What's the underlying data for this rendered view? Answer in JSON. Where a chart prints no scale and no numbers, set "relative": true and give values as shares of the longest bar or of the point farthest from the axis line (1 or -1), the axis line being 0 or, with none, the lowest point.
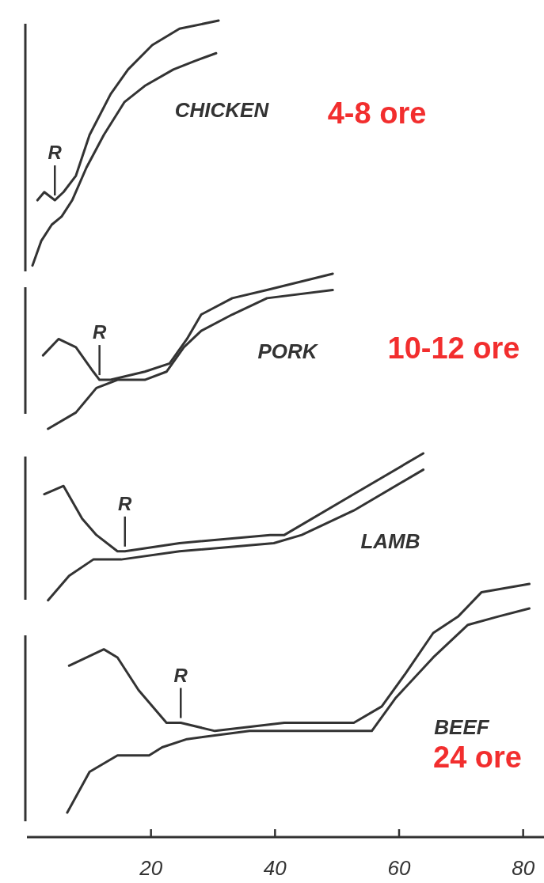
{
  "chart_data": {
    "type": "line",
    "relative": true,
    "xlim": [
      0,
      84
    ],
    "xticks": [
      20,
      40,
      60,
      80
    ],
    "tick_labels": "x",
    "annotations": [
      "CHICKEN",
      "4-8 ore",
      "PORK",
      "10-12 ore",
      "LAMB",
      "BEEF",
      "24 ore",
      {
        "text": "R",
        "x": 4.5,
        "y": 0.78
      },
      {
        "text": "R",
        "x": 11.7,
        "y": 0.56
      },
      {
        "text": "R",
        "x": 15.8,
        "y": 0.35
      },
      {
        "text": "R",
        "x": 24.8,
        "y": 0.14
      }
    ],
    "series": [
      {
        "color": "#333333",
        "x": [
          1.7,
          2.8,
          4.5,
          5.9,
          7.9,
          10.1,
          13.5,
          16.3,
          20.2,
          24.6,
          30.9
        ],
        "values": [
          0.78,
          0.79,
          0.78,
          0.79,
          0.81,
          0.86,
          0.91,
          0.94,
          0.97,
          0.99,
          1.0
        ]
      },
      {
        "color": "#333333",
        "x": [
          0.9,
          2.3,
          4.0,
          5.6,
          7.3,
          9.6,
          12.4,
          15.7,
          19.0,
          23.6,
          26.9,
          30.5
        ],
        "values": [
          0.7,
          0.73,
          0.75,
          0.76,
          0.78,
          0.82,
          0.86,
          0.9,
          0.92,
          0.94,
          0.95,
          0.96
        ]
      },
      {
        "color": "#333333",
        "x": [
          2.6,
          5.1,
          7.9,
          10.7,
          11.7,
          13.5,
          19.0,
          23.0,
          25.8,
          28.1,
          33.1,
          38.7,
          49.3
        ],
        "values": [
          0.59,
          0.61,
          0.6,
          0.57,
          0.56,
          0.56,
          0.57,
          0.58,
          0.61,
          0.64,
          0.66,
          0.67,
          0.69
        ]
      },
      {
        "color": "#333333",
        "x": [
          3.4,
          7.9,
          11.2,
          14.6,
          19.0,
          22.5,
          25.3,
          28.1,
          33.1,
          38.7,
          49.3
        ],
        "values": [
          0.5,
          0.52,
          0.55,
          0.56,
          0.56,
          0.57,
          0.6,
          0.62,
          0.64,
          0.66,
          0.67
        ]
      },
      {
        "color": "#333333",
        "x": [
          2.8,
          5.9,
          8.9,
          11.2,
          14.6,
          15.8,
          24.6,
          39.2,
          41.5,
          52.7,
          63.9
        ],
        "values": [
          0.42,
          0.43,
          0.39,
          0.37,
          0.35,
          0.35,
          0.36,
          0.37,
          0.37,
          0.42,
          0.47
        ]
      },
      {
        "color": "#333333",
        "x": [
          3.4,
          6.8,
          10.7,
          15.2,
          24.6,
          39.8,
          44.3,
          52.7,
          63.9
        ],
        "values": [
          0.29,
          0.32,
          0.34,
          0.34,
          0.35,
          0.36,
          0.37,
          0.4,
          0.45
        ]
      },
      {
        "color": "#333333",
        "x": [
          6.8,
          12.4,
          14.6,
          18.0,
          22.5,
          24.8,
          30.3,
          41.5,
          52.7,
          57.2,
          61.0,
          65.5,
          69.5,
          73.3,
          81.0
        ],
        "values": [
          0.21,
          0.23,
          0.22,
          0.18,
          0.14,
          0.14,
          0.13,
          0.14,
          0.14,
          0.16,
          0.2,
          0.25,
          0.27,
          0.3,
          0.31
        ]
      },
      {
        "color": "#333333",
        "x": [
          6.5,
          10.1,
          14.6,
          19.7,
          21.8,
          25.8,
          35.9,
          55.6,
          59.4,
          65.5,
          71.1,
          75.9,
          81.0
        ],
        "values": [
          0.03,
          0.08,
          0.1,
          0.1,
          0.11,
          0.12,
          0.13,
          0.13,
          0.17,
          0.22,
          0.26,
          0.27,
          0.28
        ]
      }
    ]
  }
}
